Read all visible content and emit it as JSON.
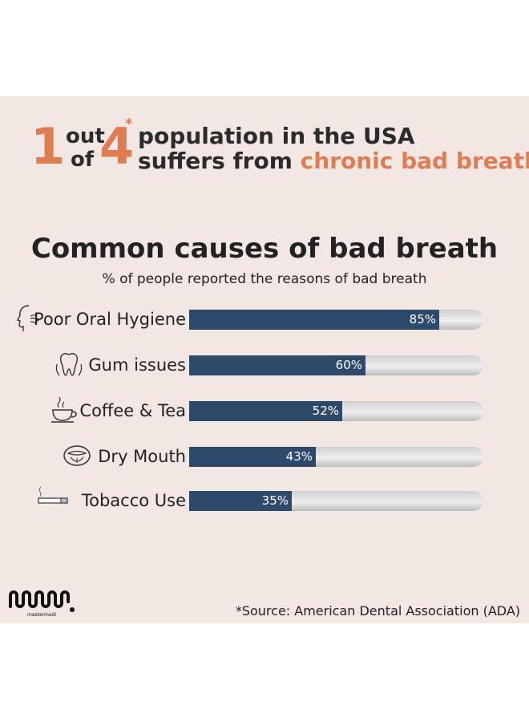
{
  "headline": {
    "stat_number": "1",
    "stat_word_top": "out",
    "stat_word_bottom": "of",
    "stat_total": "4",
    "asterisk": "*",
    "line1": "population in the USA",
    "line2_prefix": "suffers from ",
    "line2_accent": "chronic bad breath."
  },
  "chart_data": {
    "type": "bar",
    "orientation": "horizontal",
    "title": "Common causes of bad breath",
    "subtitle": "% of people reported the reasons of bad breath",
    "categories": [
      "Poor Oral Hygiene",
      "Gum issues",
      "Coffee & Tea",
      "Dry Mouth",
      "Tobacco Use"
    ],
    "values": [
      85,
      60,
      52,
      43,
      35
    ],
    "value_labels": [
      "85%",
      "60%",
      "52%",
      "43%",
      "35%"
    ],
    "xlim": [
      0,
      100
    ],
    "icons": [
      "face-breath-icon",
      "tooth-icon",
      "coffee-cup-icon",
      "open-mouth-icon",
      "cigarette-icon"
    ],
    "grid": false,
    "legend": "none"
  },
  "footer": {
    "logo_text": "mastermedi",
    "source": "*Source: American Dental Association (ADA)"
  },
  "colors": {
    "accent": "#e07c52",
    "bar": "#2e4a6b",
    "panel": "#f2e7e3",
    "text": "#222222"
  }
}
